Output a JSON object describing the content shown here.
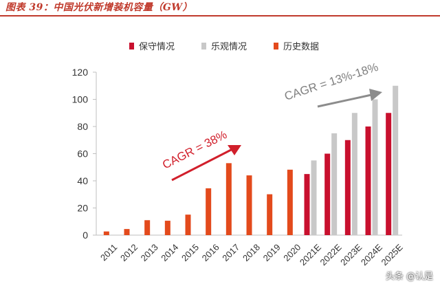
{
  "figure_title": "图表 39：中国光伏新增装机容量（GW）",
  "watermark": "头条 @认是",
  "colors": {
    "title": "#c0392b",
    "history": "#e34a1c",
    "conservative": "#c8102e",
    "optimistic": "#c8c8c8",
    "arrow_red": "#d11f2b",
    "arrow_gray": "#8c8c8c",
    "axis": "#bfbfbf"
  },
  "chart_data": {
    "type": "bar",
    "title": "",
    "xlabel": "",
    "ylabel": "",
    "ylim": [
      0,
      120
    ],
    "yticks": [
      0,
      20,
      40,
      60,
      80,
      100,
      120
    ],
    "grid": false,
    "legend_position": "top-right",
    "categories": [
      "2011",
      "2012",
      "2013",
      "2014",
      "2015",
      "2016",
      "2017",
      "2018",
      "2019",
      "2020",
      "2021E",
      "2022E",
      "2023E",
      "2024E",
      "2025E"
    ],
    "series": [
      {
        "name": "保守情况",
        "color_key": "conservative",
        "values": [
          null,
          null,
          null,
          null,
          null,
          null,
          null,
          null,
          null,
          null,
          45,
          60,
          70,
          80,
          90
        ]
      },
      {
        "name": "乐观情况",
        "color_key": "optimistic",
        "values": [
          null,
          null,
          null,
          null,
          null,
          null,
          null,
          null,
          null,
          null,
          55,
          75,
          90,
          100,
          110
        ]
      },
      {
        "name": "历史数据",
        "color_key": "history",
        "values": [
          2.7,
          4.5,
          11,
          10.6,
          15.1,
          34.5,
          53,
          44,
          30.1,
          48.2,
          null,
          null,
          null,
          null,
          null
        ]
      }
    ],
    "annotations": [
      {
        "text": "CAGR = 38%",
        "color_key": "arrow_red"
      },
      {
        "text": "CAGR = 13%-18%",
        "color_key": "arrow_gray"
      }
    ]
  }
}
